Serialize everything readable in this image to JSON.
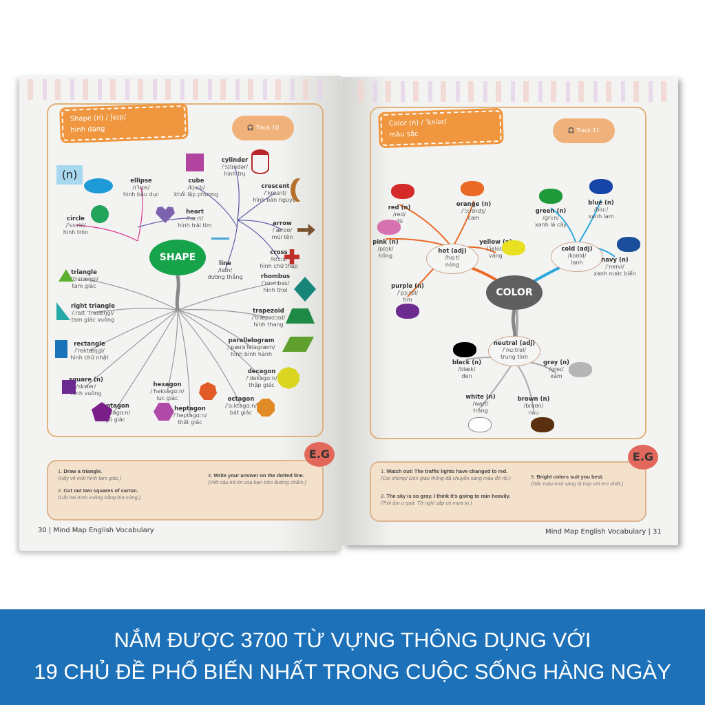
{
  "left_page": {
    "header": {
      "term": "Shape (n) / ʃeɪp/",
      "meaning": "hình dạng"
    },
    "audio_label": "Track 10",
    "pos_box": "(n)",
    "center": "SHAPE",
    "words": [
      {
        "term": "ellipse",
        "ipa": "/ɪˈlɪps/",
        "meaning": "hình bầu dục",
        "color": "#1e9ad6"
      },
      {
        "term": "circle",
        "ipa": "/ˈsɜːrkl/",
        "meaning": "hình tròn",
        "color": "#22a45a"
      },
      {
        "term": "cube",
        "ipa": "/kjuːb/",
        "meaning": "khối lập phương",
        "color": "#b0449f"
      },
      {
        "term": "heart",
        "ipa": "/hɑːrt/",
        "meaning": "hình trái tim",
        "color": "#7d62b0"
      },
      {
        "term": "cylinder",
        "ipa": "/ˈsɪlɪndər/",
        "meaning": "hình trụ",
        "color": "#b8262b"
      },
      {
        "term": "crescent",
        "ipa": "/ˈkresnt/",
        "meaning": "hình bán nguyệt",
        "color": "#b5702a"
      },
      {
        "term": "arrow",
        "ipa": "/ˈæroʊ/",
        "meaning": "mũi tên",
        "color": "#7a5230"
      },
      {
        "term": "cross",
        "ipa": "/krɔːs/",
        "meaning": "hình chữ thập",
        "color": "#c0302b"
      },
      {
        "term": "line",
        "ipa": "/laɪn/",
        "meaning": "đường thẳng",
        "color": "#4aa6d8"
      },
      {
        "term": "triangle",
        "ipa": "/ˈtraɪæŋgl/",
        "meaning": "tam giác",
        "color": "#5cb030"
      },
      {
        "term": "right triangle",
        "ipa": "/ˌraɪt ˈtraɪæŋgl/",
        "meaning": "tam giác vuông",
        "color": "#26a8a8"
      },
      {
        "term": "rectangle",
        "ipa": "/ˈrektæŋgl/",
        "meaning": "hình chữ nhật",
        "color": "#1a72b8"
      },
      {
        "term": "square (n)",
        "ipa": "/skwer/",
        "meaning": "hình vuông",
        "color": "#6a2a90"
      },
      {
        "term": "pentagon",
        "ipa": "/ˈpentəgɑːn/",
        "meaning": "ngũ giác",
        "color": "#7a1f8a"
      },
      {
        "term": "hexagon",
        "ipa": "/ˈheksəgɑːn/",
        "meaning": "lục giác",
        "color": "#b04aa9"
      },
      {
        "term": "heptagon",
        "ipa": "/ˈheptəgɑːn/",
        "meaning": "thất giác",
        "color": "#e25a25"
      },
      {
        "term": "octagon",
        "ipa": "/ˈɑːktəgɑːn/",
        "meaning": "bát giác",
        "color": "#e08b25"
      },
      {
        "term": "decagon",
        "ipa": "/ˈdekəgɑːn/",
        "meaning": "thập giác",
        "color": "#d9d520"
      },
      {
        "term": "parallelogram",
        "ipa": "/ˌpærəˈleləgræm/",
        "meaning": "hình bình hành",
        "color": "#5fa02d"
      },
      {
        "term": "trapezoid",
        "ipa": "/ˈtræpəzɔɪd/",
        "meaning": "hình thang",
        "color": "#1e8a45"
      },
      {
        "term": "rhombus",
        "ipa": "/ˈrɑːmbəs/",
        "meaning": "hình thoi",
        "color": "#16857a"
      }
    ],
    "examples": [
      {
        "num": "1.",
        "en": "Draw a triangle.",
        "vi": "(Hãy vẽ một hình tam giác.)"
      },
      {
        "num": "2.",
        "en": "Cut out two squares of carton.",
        "vi": "(Cắt hai hình vuông bằng bìa cứng.)"
      },
      {
        "num": "3.",
        "en": "Write your answer on the dotted line.",
        "vi": "(Viết câu trả lời của bạn trên đường chấm.)"
      }
    ],
    "eg_label": "E.G",
    "footer": "30 | Mind Map English Vocabulary"
  },
  "right_page": {
    "header": {
      "term": "Color (n) / ˈkʌlər/",
      "meaning": "màu sắc"
    },
    "audio_label": "Track 11",
    "center": "COLOR",
    "groups": [
      {
        "term": "hot (adj)",
        "ipa": "/hɑːt/",
        "meaning": "nóng"
      },
      {
        "term": "cold (adj)",
        "ipa": "/koʊld/",
        "meaning": "lạnh"
      },
      {
        "term": "neutral (adj)",
        "ipa": "/ˈnuːtrəl/",
        "meaning": "trung tính"
      }
    ],
    "words": [
      {
        "term": "red (n)",
        "ipa": "/red/",
        "meaning": "đỏ",
        "color": "#d42a2a"
      },
      {
        "term": "orange (n)",
        "ipa": "/ˈɔːrɪndʒ/",
        "meaning": "cam",
        "color": "#ea6a25"
      },
      {
        "term": "pink (n)",
        "ipa": "/pɪŋk/",
        "meaning": "hồng",
        "color": "#d772b0"
      },
      {
        "term": "yellow (n)",
        "ipa": "/ˈjeloʊ/",
        "meaning": "vàng",
        "color": "#e8e020"
      },
      {
        "term": "purple (n)",
        "ipa": "/ˈpɜːrpl/",
        "meaning": "tím",
        "color": "#6b2b8f"
      },
      {
        "term": "green (n)",
        "ipa": "/griːn/",
        "meaning": "xanh lá cây",
        "color": "#1e9a3a"
      },
      {
        "term": "blue (n)",
        "ipa": "/bluː/",
        "meaning": "xanh lam",
        "color": "#1746a8"
      },
      {
        "term": "navy (n)",
        "ipa": "/ˈneɪvi/",
        "meaning": "xanh nước biển",
        "color": "#1a4d9a"
      },
      {
        "term": "black (n)",
        "ipa": "/blæk/",
        "meaning": "đen",
        "color": "#000000"
      },
      {
        "term": "gray (n)",
        "ipa": "/greɪ/",
        "meaning": "xám",
        "color": "#b5b5b5"
      },
      {
        "term": "white (n)",
        "ipa": "/waɪt/",
        "meaning": "trắng",
        "color": "#ffffff"
      },
      {
        "term": "brown (n)",
        "ipa": "/braʊn/",
        "meaning": "nâu",
        "color": "#5a3010"
      }
    ],
    "examples": [
      {
        "num": "1.",
        "en": "Watch out! The traffic lights have changed to red.",
        "vi": "(Coi chừng! Đèn giao thông đã chuyển sang màu đỏ rồi.)"
      },
      {
        "num": "2.",
        "en": "The sky is so gray. I think it's going to rain heavily.",
        "vi": "(Trời âm u quá. Tớ nghĩ sắp có mưa to.)"
      },
      {
        "num": "3.",
        "en": "Bright colors suit you best.",
        "vi": "(Sắc màu tươi sáng là hợp với em nhất.)"
      }
    ],
    "eg_label": "E.G",
    "footer": "Mind Map English Vocabulary | 31"
  },
  "banner": {
    "line1": "NẮM ĐƯỢC 3700 TỪ VỰNG THÔNG DỤNG VỚI",
    "line2": "19 CHỦ ĐỀ PHỔ BIẾN NHẤT TRONG CUỘC SỐNG HÀNG NGÀY",
    "color": "#1c71b9"
  }
}
